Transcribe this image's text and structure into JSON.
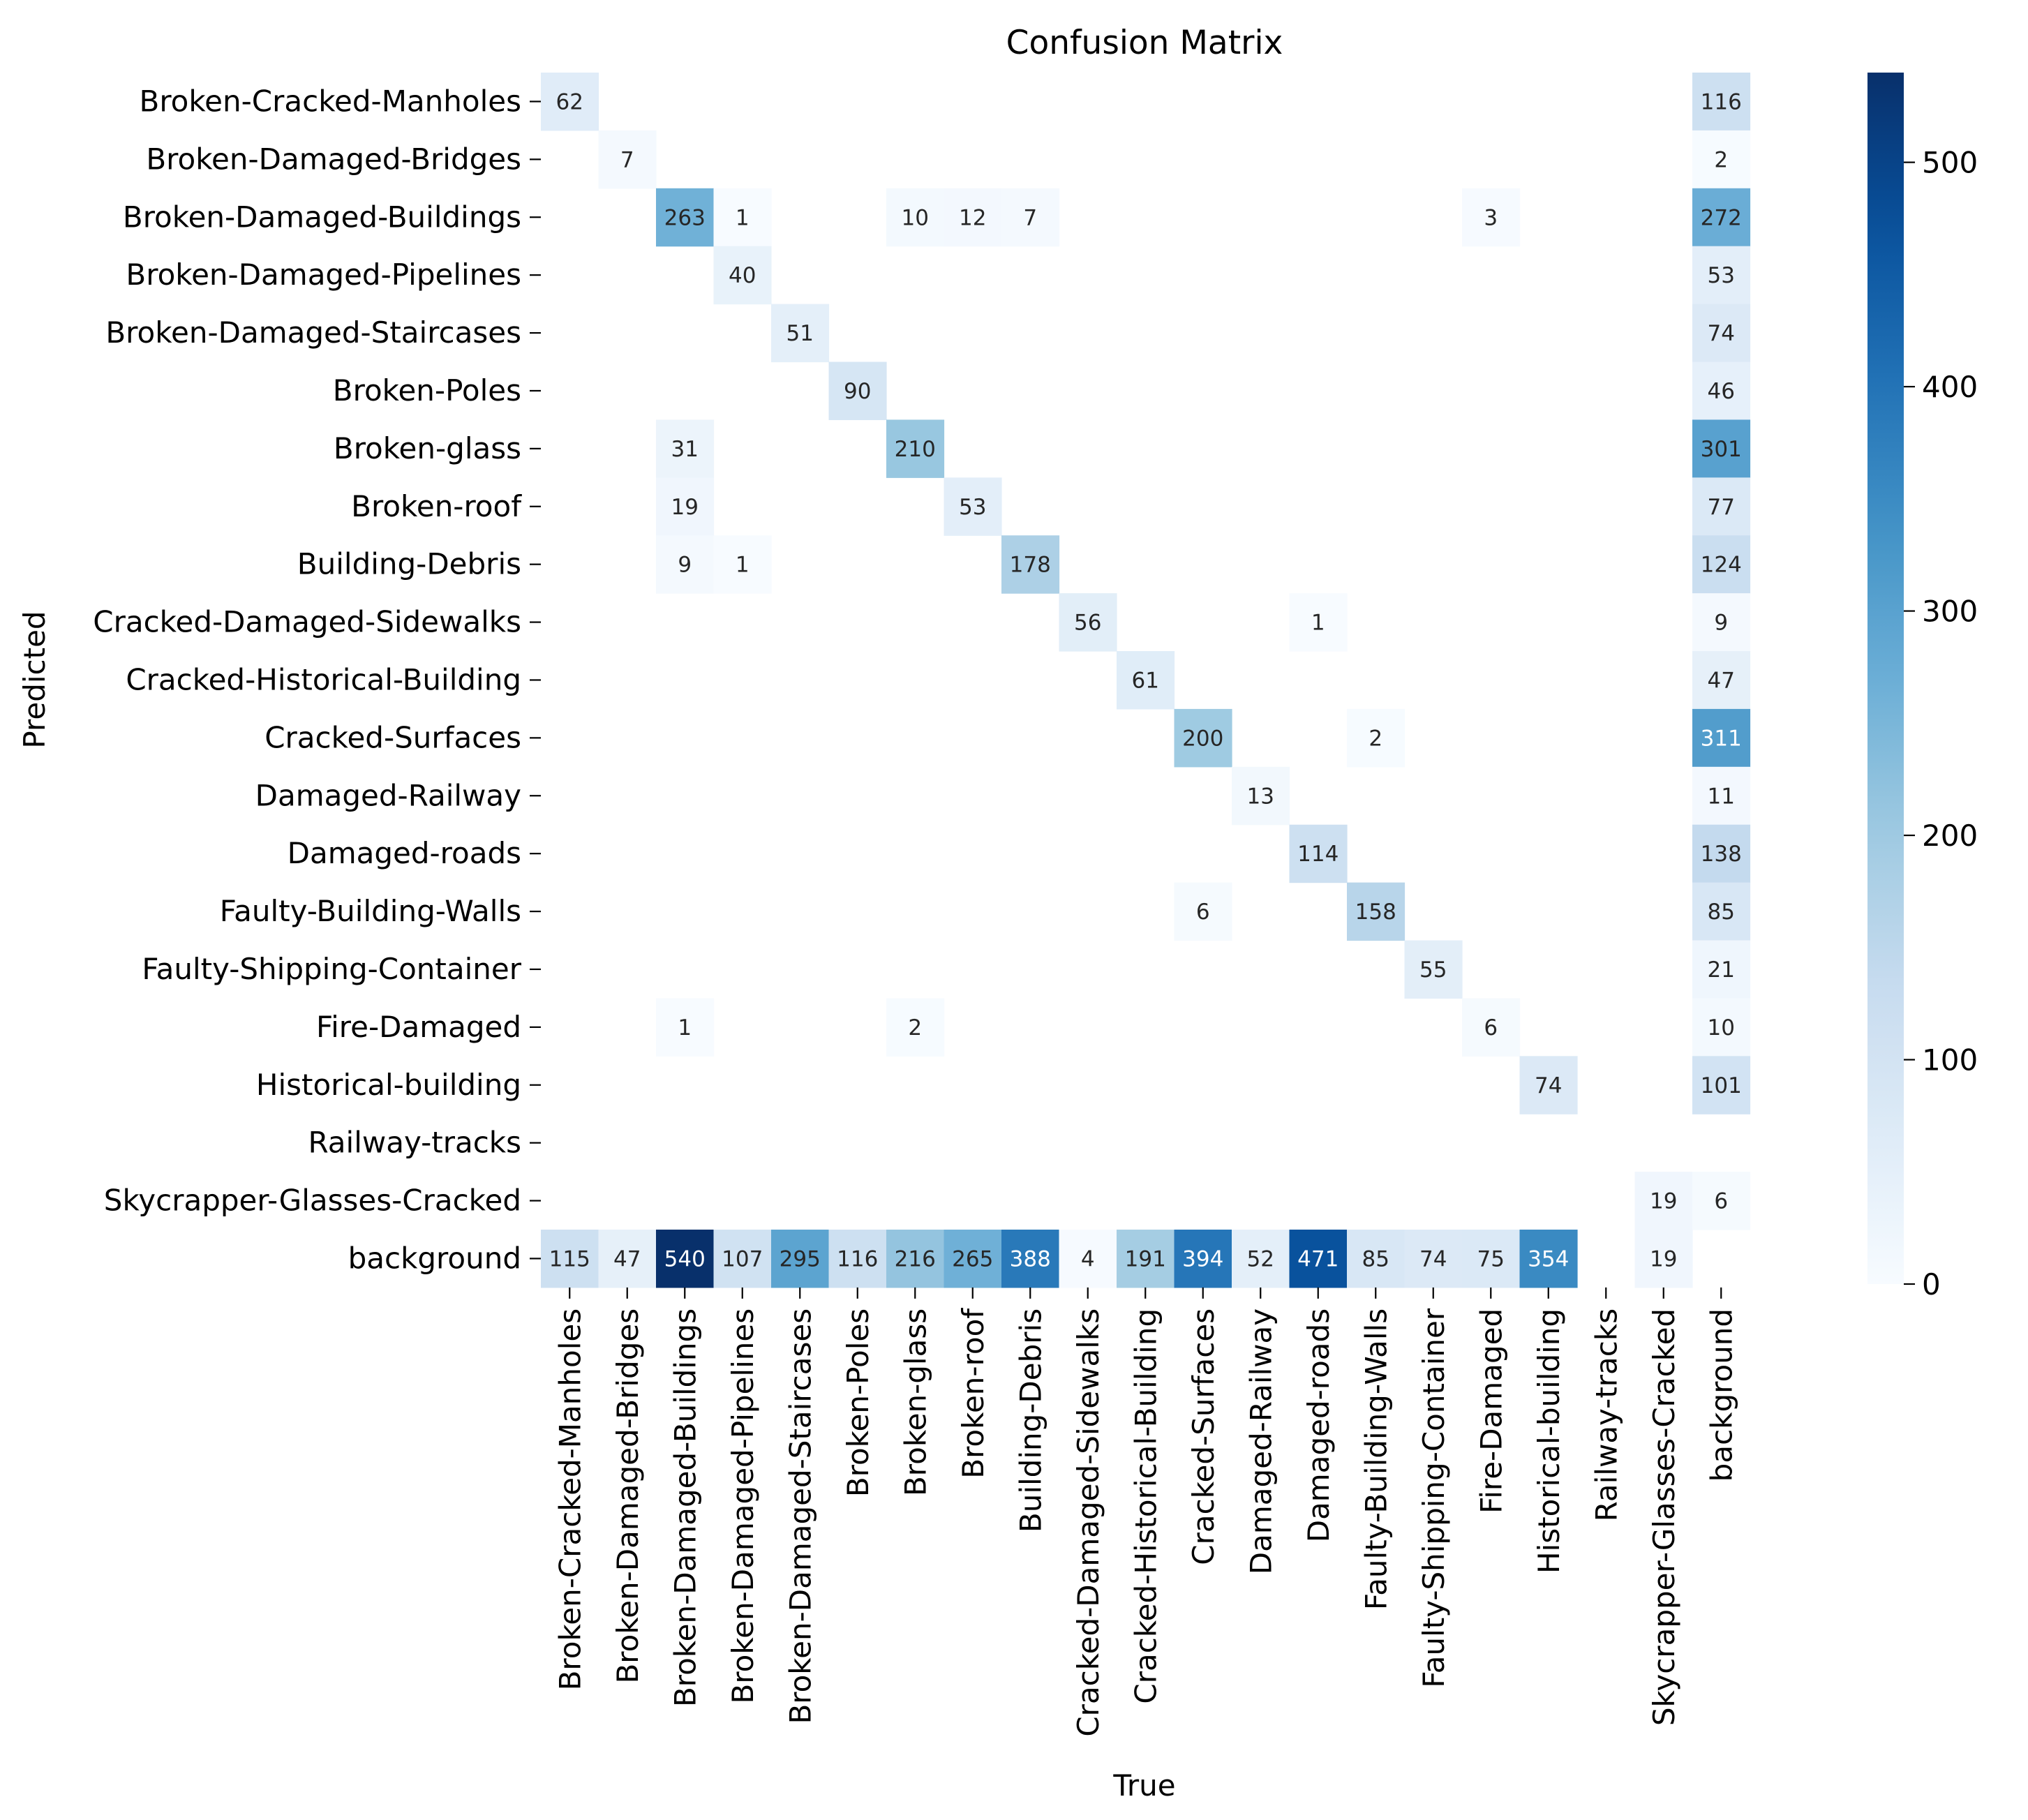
{
  "chart_data": {
    "type": "heatmap",
    "title": "Confusion Matrix",
    "xlabel": "True",
    "ylabel": "Predicted",
    "rows": [
      "Broken-Cracked-Manholes",
      "Broken-Damaged-Bridges",
      "Broken-Damaged-Buildings",
      "Broken-Damaged-Pipelines",
      "Broken-Damaged-Staircases",
      "Broken-Poles",
      "Broken-glass",
      "Broken-roof",
      "Building-Debris",
      "Cracked-Damaged-Sidewalks",
      "Cracked-Historical-Building",
      "Cracked-Surfaces",
      "Damaged-Railway",
      "Damaged-roads",
      "Faulty-Building-Walls",
      "Faulty-Shipping-Container",
      "Fire-Damaged",
      "Historical-building",
      "Railway-tracks",
      "Skycrapper-Glasses-Cracked",
      "background"
    ],
    "columns": [
      "Broken-Cracked-Manholes",
      "Broken-Damaged-Bridges",
      "Broken-Damaged-Buildings",
      "Broken-Damaged-Pipelines",
      "Broken-Damaged-Staircases",
      "Broken-Poles",
      "Broken-glass",
      "Broken-roof",
      "Building-Debris",
      "Cracked-Damaged-Sidewalks",
      "Cracked-Historical-Building",
      "Cracked-Surfaces",
      "Damaged-Railway",
      "Damaged-roads",
      "Faulty-Building-Walls",
      "Faulty-Shipping-Container",
      "Fire-Damaged",
      "Historical-building",
      "Railway-tracks",
      "Skycrapper-Glasses-Cracked",
      "background"
    ],
    "values": [
      [
        62,
        null,
        null,
        null,
        null,
        null,
        null,
        null,
        null,
        null,
        null,
        null,
        null,
        null,
        null,
        null,
        null,
        null,
        null,
        null,
        116
      ],
      [
        null,
        7,
        null,
        null,
        null,
        null,
        null,
        null,
        null,
        null,
        null,
        null,
        null,
        null,
        null,
        null,
        null,
        null,
        null,
        null,
        2
      ],
      [
        null,
        null,
        263,
        1,
        null,
        null,
        10,
        12,
        7,
        null,
        null,
        null,
        null,
        null,
        null,
        null,
        3,
        null,
        null,
        null,
        272
      ],
      [
        null,
        null,
        null,
        40,
        null,
        null,
        null,
        null,
        null,
        null,
        null,
        null,
        null,
        null,
        null,
        null,
        null,
        null,
        null,
        null,
        53
      ],
      [
        null,
        null,
        null,
        null,
        51,
        null,
        null,
        null,
        null,
        null,
        null,
        null,
        null,
        null,
        null,
        null,
        null,
        null,
        null,
        null,
        74
      ],
      [
        null,
        null,
        null,
        null,
        null,
        90,
        null,
        null,
        null,
        null,
        null,
        null,
        null,
        null,
        null,
        null,
        null,
        null,
        null,
        null,
        46
      ],
      [
        null,
        null,
        31,
        null,
        null,
        null,
        210,
        null,
        null,
        null,
        null,
        null,
        null,
        null,
        null,
        null,
        null,
        null,
        null,
        null,
        301
      ],
      [
        null,
        null,
        19,
        null,
        null,
        null,
        null,
        53,
        null,
        null,
        null,
        null,
        null,
        null,
        null,
        null,
        null,
        null,
        null,
        null,
        77
      ],
      [
        null,
        null,
        9,
        1,
        null,
        null,
        null,
        null,
        178,
        null,
        null,
        null,
        null,
        null,
        null,
        null,
        null,
        null,
        null,
        null,
        124
      ],
      [
        null,
        null,
        null,
        null,
        null,
        null,
        null,
        null,
        null,
        56,
        null,
        null,
        null,
        1,
        null,
        null,
        null,
        null,
        null,
        null,
        9
      ],
      [
        null,
        null,
        null,
        null,
        null,
        null,
        null,
        null,
        null,
        null,
        61,
        null,
        null,
        null,
        null,
        null,
        null,
        null,
        null,
        null,
        47
      ],
      [
        null,
        null,
        null,
        null,
        null,
        null,
        null,
        null,
        null,
        null,
        null,
        200,
        null,
        null,
        2,
        null,
        null,
        null,
        null,
        null,
        311
      ],
      [
        null,
        null,
        null,
        null,
        null,
        null,
        null,
        null,
        null,
        null,
        null,
        null,
        13,
        null,
        null,
        null,
        null,
        null,
        null,
        null,
        11
      ],
      [
        null,
        null,
        null,
        null,
        null,
        null,
        null,
        null,
        null,
        null,
        null,
        null,
        null,
        114,
        null,
        null,
        null,
        null,
        null,
        null,
        138
      ],
      [
        null,
        null,
        null,
        null,
        null,
        null,
        null,
        null,
        null,
        null,
        null,
        6,
        null,
        null,
        158,
        null,
        null,
        null,
        null,
        null,
        85
      ],
      [
        null,
        null,
        null,
        null,
        null,
        null,
        null,
        null,
        null,
        null,
        null,
        null,
        null,
        null,
        null,
        55,
        null,
        null,
        null,
        null,
        21
      ],
      [
        null,
        null,
        1,
        null,
        null,
        null,
        2,
        null,
        null,
        null,
        null,
        null,
        null,
        null,
        null,
        null,
        6,
        null,
        null,
        null,
        10
      ],
      [
        null,
        null,
        null,
        null,
        null,
        null,
        null,
        null,
        null,
        null,
        null,
        null,
        null,
        null,
        null,
        null,
        null,
        74,
        null,
        null,
        101
      ],
      [
        null,
        null,
        null,
        null,
        null,
        null,
        null,
        null,
        null,
        null,
        null,
        null,
        null,
        null,
        null,
        null,
        null,
        null,
        null,
        null,
        null
      ],
      [
        null,
        null,
        null,
        null,
        null,
        null,
        null,
        null,
        null,
        null,
        null,
        null,
        null,
        null,
        null,
        null,
        null,
        null,
        null,
        19,
        6
      ],
      [
        115,
        47,
        540,
        107,
        295,
        116,
        216,
        265,
        388,
        4,
        191,
        394,
        52,
        471,
        85,
        74,
        75,
        354,
        null,
        19,
        null
      ]
    ],
    "colormap": "Blues",
    "colorbar": {
      "min": 0,
      "max": 540,
      "ticks": [
        0,
        100,
        200,
        300,
        400,
        500
      ],
      "tick_labels": [
        "0",
        "100",
        "200",
        "300",
        "400",
        "500"
      ]
    },
    "grid": false
  }
}
